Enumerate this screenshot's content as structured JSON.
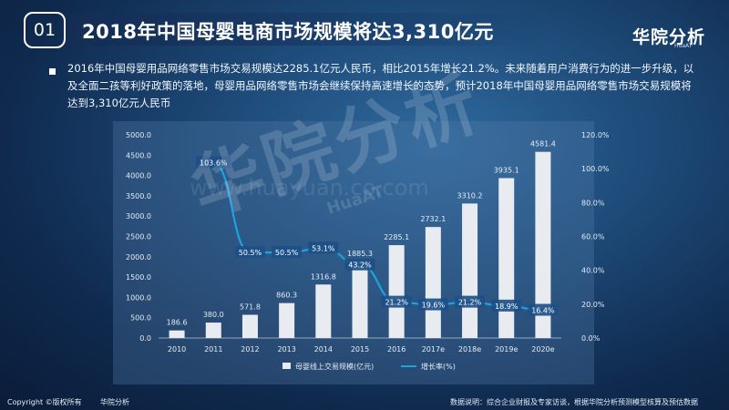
{
  "header": {
    "number": "01",
    "title": "2018年中国母婴电商市场规模将达3,310亿元",
    "brand": "华院分析",
    "brand_sub": "HuaAT"
  },
  "paragraph": "2016年中国母婴用品网络零售市场交易规模达2285.1亿元人民币，相比2015年增长21.2%。未来随着用户消费行为的进一步升级，以及全面二孩等利好政策的落地，母婴用品网络零售市场会继续保持高速增长的态势，预计2018年中国母婴用品网络零售市场交易规模将达到3,310亿元人民币",
  "watermark": {
    "main": "华院分析",
    "sub": "HuaAT",
    "url": "www.huayuan.co.com"
  },
  "footer": {
    "copyright": "Copyright ©版权所有",
    "company": "华院分析",
    "source": "数据说明：综合企业财报及专家访谈，根据华院分析预测模型核算及预估数据"
  },
  "colors": {
    "bar": "#e8ecf1",
    "line": "#1aa3e0",
    "label_bg": "#1d4f86",
    "axis_text": "#e4ecf6"
  },
  "chart_data": {
    "type": "bar",
    "categories": [
      "2010",
      "2011",
      "2012",
      "2013",
      "2014",
      "2015",
      "2016",
      "2017e",
      "2018e",
      "2019e",
      "2020e"
    ],
    "series": [
      {
        "name": "母婴线上交易规模(亿元)",
        "type": "bar",
        "values": [
          186.6,
          380.0,
          571.8,
          860.3,
          1316.8,
          1885.3,
          2285.1,
          2732.1,
          3310.2,
          3935.1,
          4581.4
        ],
        "labels": [
          "186.6",
          "380.0",
          "571.8",
          "860.3",
          "1316.8",
          "1885.3",
          "2285.1",
          "2732.1",
          "3310.2",
          "3935.1",
          "4581.4"
        ]
      },
      {
        "name": "增长率(%)",
        "type": "line",
        "axis": "right",
        "x": [
          "2011",
          "2012",
          "2013",
          "2014",
          "2015",
          "2016",
          "2017e",
          "2018e",
          "2019e",
          "2020e"
        ],
        "values": [
          103.6,
          50.5,
          50.5,
          53.1,
          43.2,
          21.2,
          19.6,
          21.2,
          18.9,
          16.4
        ],
        "labels": [
          "103.6%",
          "50.5%",
          "50.5%",
          "53.1%",
          "43.2%",
          "21.2%",
          "19.6%",
          "21.2%",
          "18.9%",
          "16.4%"
        ]
      }
    ],
    "ylim": [
      0,
      5000
    ],
    "y_ticks": [
      "0.0",
      "500.0",
      "1000.0",
      "1500.0",
      "2000.0",
      "2500.0",
      "3000.0",
      "3500.0",
      "4000.0",
      "4500.0",
      "5000.0"
    ],
    "y2lim": [
      0,
      120
    ],
    "y2_ticks": [
      "0.0%",
      "20.0%",
      "40.0%",
      "60.0%",
      "80.0%",
      "100.0%",
      "120.0%"
    ],
    "legend_position": "bottom-center"
  }
}
